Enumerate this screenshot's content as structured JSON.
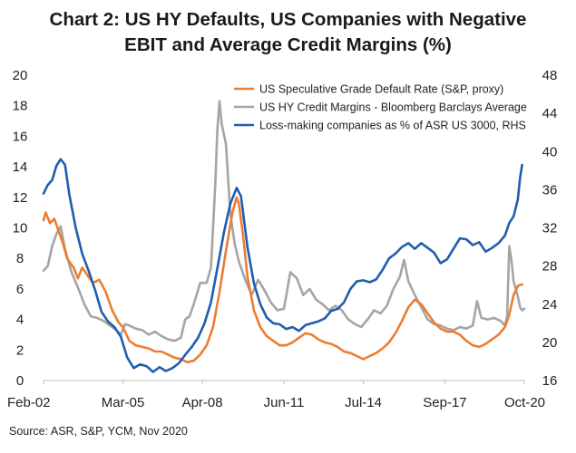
{
  "chart_data": {
    "type": "line",
    "title_line1": "Chart 2: US HY Defaults, US Companies with Negative",
    "title_line2": "EBIT and Average Credit Margins (%)",
    "source": "Source: ASR, S&P, YCM, Nov 2020",
    "x_tick_labels": [
      "Feb-02",
      "Mar-05",
      "Apr-08",
      "Jun-11",
      "Jul-14",
      "Sep-17",
      "Oct-20"
    ],
    "x_range": [
      "Feb-02",
      "Oct-20"
    ],
    "y_left": {
      "min": 0,
      "max": 20,
      "ticks": [
        0,
        2,
        4,
        6,
        8,
        10,
        12,
        14,
        16,
        18,
        20
      ]
    },
    "y_right": {
      "min": 16,
      "max": 48,
      "ticks": [
        16,
        20,
        24,
        28,
        32,
        36,
        40,
        44,
        48
      ]
    },
    "grid": false,
    "legend_position": "top-right",
    "series": [
      {
        "name": "US Speculative Grade Default Rate (S&P, proxy)",
        "color": "#ED7D31",
        "axis": "left",
        "points": [
          [
            "2002-02",
            10.5
          ],
          [
            "2002-03",
            11.0
          ],
          [
            "2002-05",
            10.3
          ],
          [
            "2002-07",
            10.6
          ],
          [
            "2002-09",
            9.8
          ],
          [
            "2002-11",
            9.0
          ],
          [
            "2003-01",
            8.0
          ],
          [
            "2003-04",
            7.4
          ],
          [
            "2003-06",
            6.7
          ],
          [
            "2003-08",
            7.4
          ],
          [
            "2003-10",
            7.0
          ],
          [
            "2004-01",
            6.4
          ],
          [
            "2004-04",
            6.6
          ],
          [
            "2004-07",
            5.8
          ],
          [
            "2004-10",
            4.6
          ],
          [
            "2005-01",
            3.8
          ],
          [
            "2005-03",
            3.5
          ],
          [
            "2005-06",
            2.6
          ],
          [
            "2005-09",
            2.3
          ],
          [
            "2005-12",
            2.2
          ],
          [
            "2006-03",
            2.1
          ],
          [
            "2006-06",
            1.9
          ],
          [
            "2006-09",
            1.9
          ],
          [
            "2006-12",
            1.7
          ],
          [
            "2007-03",
            1.5
          ],
          [
            "2007-06",
            1.4
          ],
          [
            "2007-09",
            1.2
          ],
          [
            "2007-12",
            1.3
          ],
          [
            "2008-03",
            1.7
          ],
          [
            "2008-06",
            2.3
          ],
          [
            "2008-09",
            3.5
          ],
          [
            "2008-12",
            5.8
          ],
          [
            "2009-03",
            8.5
          ],
          [
            "2009-06",
            11.0
          ],
          [
            "2009-08",
            12.0
          ],
          [
            "2009-09",
            11.6
          ],
          [
            "2009-11",
            9.5
          ],
          [
            "2010-01",
            6.8
          ],
          [
            "2010-04",
            4.6
          ],
          [
            "2010-07",
            3.5
          ],
          [
            "2010-10",
            2.9
          ],
          [
            "2011-01",
            2.6
          ],
          [
            "2011-04",
            2.3
          ],
          [
            "2011-07",
            2.3
          ],
          [
            "2011-10",
            2.5
          ],
          [
            "2012-01",
            2.8
          ],
          [
            "2012-04",
            3.1
          ],
          [
            "2012-07",
            3.0
          ],
          [
            "2012-10",
            2.7
          ],
          [
            "2013-01",
            2.5
          ],
          [
            "2013-04",
            2.4
          ],
          [
            "2013-07",
            2.2
          ],
          [
            "2013-10",
            1.9
          ],
          [
            "2014-01",
            1.8
          ],
          [
            "2014-04",
            1.6
          ],
          [
            "2014-07",
            1.4
          ],
          [
            "2014-10",
            1.6
          ],
          [
            "2015-01",
            1.8
          ],
          [
            "2015-04",
            2.1
          ],
          [
            "2015-07",
            2.5
          ],
          [
            "2015-10",
            3.1
          ],
          [
            "2016-01",
            3.9
          ],
          [
            "2016-04",
            4.8
          ],
          [
            "2016-07",
            5.3
          ],
          [
            "2016-10",
            5.0
          ],
          [
            "2017-01",
            4.4
          ],
          [
            "2017-04",
            3.8
          ],
          [
            "2017-07",
            3.4
          ],
          [
            "2017-10",
            3.2
          ],
          [
            "2018-01",
            3.2
          ],
          [
            "2018-04",
            3.0
          ],
          [
            "2018-07",
            2.6
          ],
          [
            "2018-10",
            2.3
          ],
          [
            "2019-01",
            2.2
          ],
          [
            "2019-04",
            2.4
          ],
          [
            "2019-07",
            2.7
          ],
          [
            "2019-10",
            3.0
          ],
          [
            "2020-01",
            3.5
          ],
          [
            "2020-03",
            4.3
          ],
          [
            "2020-05",
            5.6
          ],
          [
            "2020-07",
            6.2
          ],
          [
            "2020-09",
            6.3
          ]
        ]
      },
      {
        "name": "US HY Credit Margins - Bloomberg Barclays Average",
        "color": "#A5A5A5",
        "axis": "left",
        "points": [
          [
            "2002-02",
            7.2
          ],
          [
            "2002-04",
            7.5
          ],
          [
            "2002-06",
            8.8
          ],
          [
            "2002-08",
            9.6
          ],
          [
            "2002-10",
            10.1
          ],
          [
            "2002-12",
            8.6
          ],
          [
            "2003-03",
            7.1
          ],
          [
            "2003-06",
            6.1
          ],
          [
            "2003-09",
            5.0
          ],
          [
            "2003-12",
            4.2
          ],
          [
            "2004-03",
            4.1
          ],
          [
            "2004-06",
            3.9
          ],
          [
            "2004-09",
            3.6
          ],
          [
            "2004-12",
            3.3
          ],
          [
            "2005-02",
            3.0
          ],
          [
            "2005-04",
            3.7
          ],
          [
            "2005-06",
            3.6
          ],
          [
            "2005-09",
            3.4
          ],
          [
            "2005-12",
            3.3
          ],
          [
            "2006-03",
            3.0
          ],
          [
            "2006-06",
            3.2
          ],
          [
            "2006-09",
            2.9
          ],
          [
            "2006-12",
            2.7
          ],
          [
            "2007-03",
            2.6
          ],
          [
            "2007-06",
            2.8
          ],
          [
            "2007-08",
            4.0
          ],
          [
            "2007-10",
            4.2
          ],
          [
            "2007-12",
            5.0
          ],
          [
            "2008-03",
            6.4
          ],
          [
            "2008-06",
            6.4
          ],
          [
            "2008-08",
            7.4
          ],
          [
            "2008-10",
            12.8
          ],
          [
            "2008-11",
            16.5
          ],
          [
            "2008-12",
            18.3
          ],
          [
            "2009-01",
            16.8
          ],
          [
            "2009-03",
            15.5
          ],
          [
            "2009-05",
            11.0
          ],
          [
            "2009-07",
            9.0
          ],
          [
            "2009-09",
            7.8
          ],
          [
            "2009-12",
            6.6
          ],
          [
            "2010-03",
            5.6
          ],
          [
            "2010-06",
            6.6
          ],
          [
            "2010-09",
            5.9
          ],
          [
            "2010-12",
            5.1
          ],
          [
            "2011-03",
            4.6
          ],
          [
            "2011-06",
            4.7
          ],
          [
            "2011-09",
            7.1
          ],
          [
            "2011-12",
            6.7
          ],
          [
            "2012-03",
            5.6
          ],
          [
            "2012-06",
            6.0
          ],
          [
            "2012-09",
            5.3
          ],
          [
            "2012-12",
            5.0
          ],
          [
            "2013-03",
            4.6
          ],
          [
            "2013-06",
            4.9
          ],
          [
            "2013-09",
            4.6
          ],
          [
            "2013-12",
            4.0
          ],
          [
            "2014-03",
            3.7
          ],
          [
            "2014-06",
            3.5
          ],
          [
            "2014-09",
            4.0
          ],
          [
            "2014-12",
            4.6
          ],
          [
            "2015-03",
            4.4
          ],
          [
            "2015-06",
            4.9
          ],
          [
            "2015-09",
            6.0
          ],
          [
            "2015-12",
            6.8
          ],
          [
            "2016-02",
            7.9
          ],
          [
            "2016-04",
            6.5
          ],
          [
            "2016-07",
            5.6
          ],
          [
            "2016-10",
            4.8
          ],
          [
            "2017-01",
            4.0
          ],
          [
            "2017-04",
            3.7
          ],
          [
            "2017-07",
            3.6
          ],
          [
            "2017-10",
            3.4
          ],
          [
            "2018-01",
            3.3
          ],
          [
            "2018-04",
            3.5
          ],
          [
            "2018-07",
            3.4
          ],
          [
            "2018-10",
            3.6
          ],
          [
            "2018-12",
            5.2
          ],
          [
            "2019-02",
            4.1
          ],
          [
            "2019-05",
            4.0
          ],
          [
            "2019-08",
            4.1
          ],
          [
            "2019-11",
            3.9
          ],
          [
            "2020-01",
            3.6
          ],
          [
            "2020-02",
            4.2
          ],
          [
            "2020-03",
            8.8
          ],
          [
            "2020-04",
            7.9
          ],
          [
            "2020-05",
            6.5
          ],
          [
            "2020-07",
            5.5
          ],
          [
            "2020-08",
            4.8
          ],
          [
            "2020-09",
            4.6
          ],
          [
            "2020-10",
            4.7
          ]
        ]
      },
      {
        "name": "Loss-making companies as % of ASR US 3000, RHS",
        "color": "#1F5EAF",
        "axis": "right",
        "points": [
          [
            "2002-02",
            35.6
          ],
          [
            "2002-04",
            36.5
          ],
          [
            "2002-06",
            37.0
          ],
          [
            "2002-08",
            38.5
          ],
          [
            "2002-10",
            39.2
          ],
          [
            "2002-12",
            38.6
          ],
          [
            "2003-02",
            35.5
          ],
          [
            "2003-05",
            32.0
          ],
          [
            "2003-08",
            29.3
          ],
          [
            "2003-11",
            27.5
          ],
          [
            "2004-02",
            25.5
          ],
          [
            "2004-05",
            23.2
          ],
          [
            "2004-08",
            22.2
          ],
          [
            "2004-11",
            21.6
          ],
          [
            "2005-02",
            20.6
          ],
          [
            "2005-05",
            18.4
          ],
          [
            "2005-08",
            17.3
          ],
          [
            "2005-11",
            17.7
          ],
          [
            "2006-02",
            17.5
          ],
          [
            "2006-05",
            16.9
          ],
          [
            "2006-08",
            17.4
          ],
          [
            "2006-11",
            17.0
          ],
          [
            "2007-02",
            17.3
          ],
          [
            "2007-05",
            17.8
          ],
          [
            "2007-08",
            18.7
          ],
          [
            "2007-11",
            19.5
          ],
          [
            "2008-02",
            20.5
          ],
          [
            "2008-05",
            22.0
          ],
          [
            "2008-08",
            24.2
          ],
          [
            "2008-11",
            27.8
          ],
          [
            "2009-02",
            31.5
          ],
          [
            "2009-05",
            34.5
          ],
          [
            "2009-08",
            36.2
          ],
          [
            "2009-10",
            35.3
          ],
          [
            "2010-01",
            30.0
          ],
          [
            "2010-04",
            26.2
          ],
          [
            "2010-07",
            24.0
          ],
          [
            "2010-10",
            22.6
          ],
          [
            "2011-01",
            22.0
          ],
          [
            "2011-04",
            21.9
          ],
          [
            "2011-07",
            21.4
          ],
          [
            "2011-10",
            21.6
          ],
          [
            "2012-01",
            21.2
          ],
          [
            "2012-04",
            21.8
          ],
          [
            "2012-07",
            22.0
          ],
          [
            "2012-10",
            22.2
          ],
          [
            "2013-01",
            22.5
          ],
          [
            "2013-04",
            23.3
          ],
          [
            "2013-07",
            23.5
          ],
          [
            "2013-10",
            24.2
          ],
          [
            "2014-01",
            25.6
          ],
          [
            "2014-04",
            26.4
          ],
          [
            "2014-07",
            26.5
          ],
          [
            "2014-10",
            26.3
          ],
          [
            "2015-01",
            26.6
          ],
          [
            "2015-04",
            27.6
          ],
          [
            "2015-07",
            28.8
          ],
          [
            "2015-10",
            29.3
          ],
          [
            "2016-01",
            30.0
          ],
          [
            "2016-04",
            30.4
          ],
          [
            "2016-07",
            29.8
          ],
          [
            "2016-10",
            30.4
          ],
          [
            "2017-01",
            29.9
          ],
          [
            "2017-04",
            29.4
          ],
          [
            "2017-07",
            28.3
          ],
          [
            "2017-10",
            28.7
          ],
          [
            "2018-01",
            29.8
          ],
          [
            "2018-04",
            30.9
          ],
          [
            "2018-07",
            30.8
          ],
          [
            "2018-10",
            30.2
          ],
          [
            "2019-01",
            30.5
          ],
          [
            "2019-04",
            29.5
          ],
          [
            "2019-07",
            29.9
          ],
          [
            "2019-10",
            30.4
          ],
          [
            "2020-01",
            31.2
          ],
          [
            "2020-03",
            32.5
          ],
          [
            "2020-05",
            33.2
          ],
          [
            "2020-07",
            35.0
          ],
          [
            "2020-08",
            37.2
          ],
          [
            "2020-09",
            38.6
          ]
        ]
      }
    ]
  }
}
